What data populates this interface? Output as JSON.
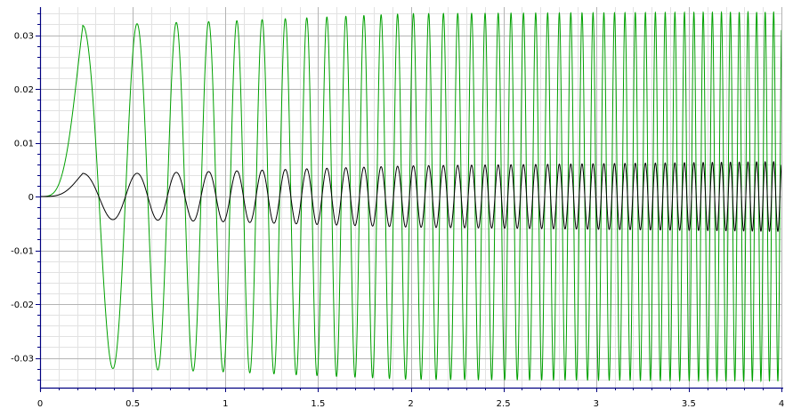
{
  "chart_data": {
    "type": "line",
    "title": "",
    "xlabel": "",
    "ylabel": "",
    "xlim": [
      0,
      4
    ],
    "ylim": [
      -0.035,
      0.035
    ],
    "grid": true,
    "legend": "none",
    "x_ticks": [
      0,
      0.5,
      1,
      1.5,
      2,
      2.5,
      3,
      3.5,
      4
    ],
    "x_tick_labels": [
      "0",
      "0.5",
      "1",
      "1.5",
      "2",
      "2.5",
      "3",
      "3.5",
      "4"
    ],
    "y_ticks": [
      0.03,
      0.02,
      0.01,
      0,
      -0.01,
      -0.02,
      -0.03
    ],
    "y_tick_labels": [
      "0.03",
      "0.02",
      "0.01",
      "0",
      "-0.01",
      "-0.02",
      "-0.03"
    ],
    "series": [
      {
        "color": "#00a000",
        "description": "chirp-like oscillation, amplitude grows from 0 to ~0.032 by x=0.25 and reaches ~0.034 by x=2, frequency increases with x",
        "peaks": [
          {
            "x": 0.23,
            "y": 0.0318
          },
          {
            "x": 0.51,
            "y": 0.0321
          },
          {
            "x": 0.68,
            "y": 0.0323
          },
          {
            "x": 1.0,
            "y": 0.0326
          },
          {
            "x": 2.0,
            "y": 0.034
          },
          {
            "x": 4.0,
            "y": 0.0343
          }
        ],
        "troughs": [
          {
            "x": 0.39,
            "y": -0.0318
          },
          {
            "x": 0.59,
            "y": -0.0321
          },
          {
            "x": 1.0,
            "y": -0.033
          },
          {
            "x": 2.0,
            "y": -0.034
          },
          {
            "x": 4.0,
            "y": -0.0343
          }
        ]
      },
      {
        "color": "#000000",
        "description": "chirp-like oscillation, amplitude grows from 0 to ~0.0043 early and reaches ~0.0065 by x=4, frequency increases with x",
        "peaks": [
          {
            "x": 0.23,
            "y": 0.0043
          },
          {
            "x": 0.51,
            "y": 0.0043
          },
          {
            "x": 1.0,
            "y": 0.0047
          },
          {
            "x": 2.0,
            "y": 0.0057
          },
          {
            "x": 4.0,
            "y": 0.0065
          }
        ],
        "troughs": [
          {
            "x": 0.39,
            "y": -0.0045
          },
          {
            "x": 1.0,
            "y": -0.005
          },
          {
            "x": 2.0,
            "y": -0.006
          },
          {
            "x": 4.0,
            "y": -0.0065
          }
        ]
      }
    ],
    "colors": {
      "background": "#ffffff",
      "major_grid": "#b4b4b4",
      "minor_grid": "#e2e2e2",
      "axis": "#000080",
      "green_series": "#00a000",
      "black_series": "#000000"
    }
  }
}
